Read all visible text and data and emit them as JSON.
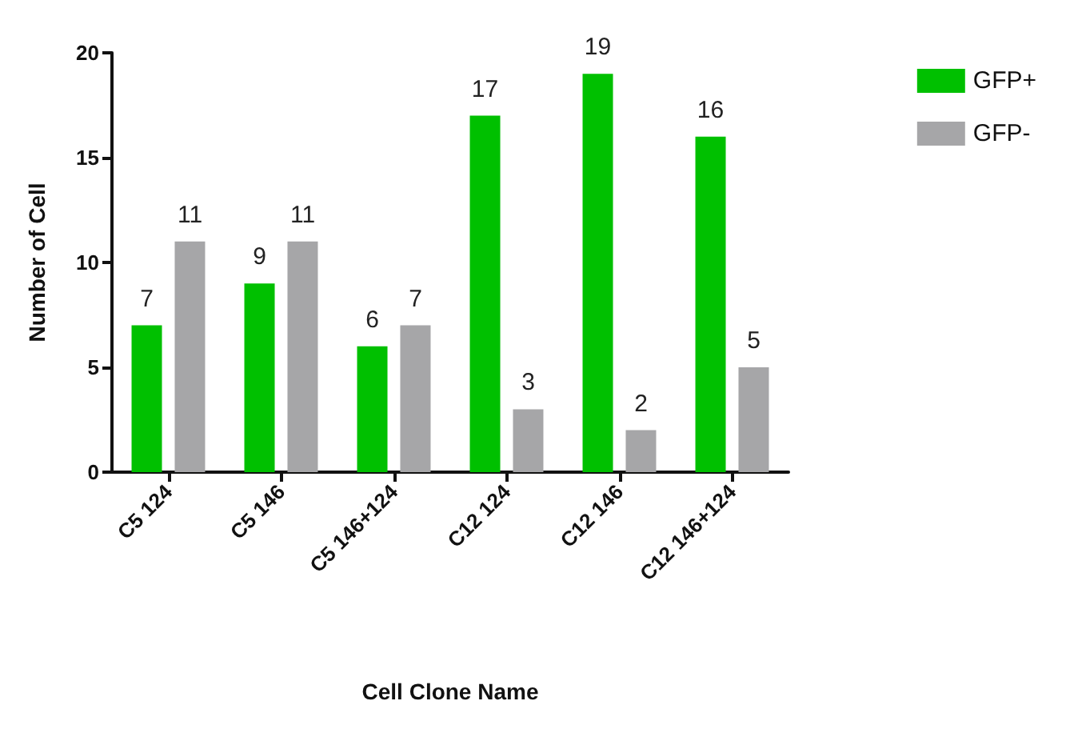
{
  "chart_data": {
    "type": "bar",
    "xlabel": "Cell Clone Name",
    "ylabel": "Number of Cell",
    "categories": [
      "C5 124",
      "C5 146",
      "C5 146+124",
      "C12 124",
      "C12 146",
      "C12 146+124"
    ],
    "series": [
      {
        "name": "GFP+",
        "color": "#00c000",
        "values": [
          7,
          9,
          6,
          17,
          19,
          16
        ]
      },
      {
        "name": "GFP-",
        "color": "#a6a6a8",
        "values": [
          11,
          11,
          7,
          3,
          2,
          5
        ]
      }
    ],
    "ylim": [
      0,
      20
    ],
    "yticks": [
      0,
      5,
      10,
      15,
      20
    ],
    "data_labels": true,
    "grid": false,
    "legend": "top right"
  }
}
